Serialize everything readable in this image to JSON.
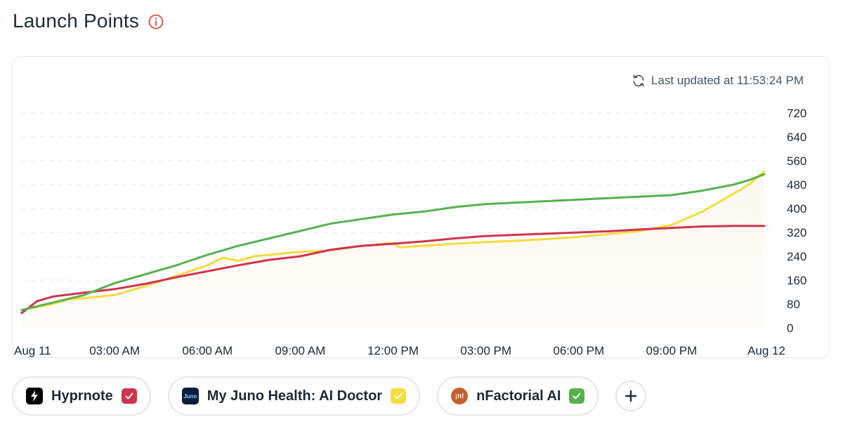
{
  "header": {
    "title": "Launch Points"
  },
  "status": {
    "last_updated": "Last updated at 11:53:24 PM"
  },
  "colors": {
    "red": "#d0334e",
    "yellow": "#f5dc3f",
    "green": "#58b14f",
    "info": "#e25a45"
  },
  "chips": [
    {
      "label": "Hyprnote",
      "logo": "bolt-logo-icon",
      "check_color": "#d0334e"
    },
    {
      "label": "My Juno Health: AI Doctor",
      "logo": "juno-logo-icon",
      "logo_text": "Juno",
      "check_color": "#f5dc3f"
    },
    {
      "label": "nFactorial AI",
      "logo": "nfactorial-logo-icon",
      "logo_text": "¡n!",
      "check_color": "#58b14f"
    }
  ],
  "add_button": {
    "icon": "plus-icon"
  },
  "chart_data": {
    "type": "line",
    "x_ticks": [
      "Aug 11",
      "03:00 AM",
      "06:00 AM",
      "09:00 AM",
      "12:00 PM",
      "03:00 PM",
      "06:00 PM",
      "09:00 PM",
      "Aug 12"
    ],
    "x_range": [
      0,
      24
    ],
    "ylim": [
      0,
      720
    ],
    "y_ticks": [
      0,
      80,
      160,
      240,
      320,
      400,
      480,
      560,
      640,
      720
    ],
    "grid": "horizontal dashed",
    "y_axis_side": "right",
    "series": [
      {
        "name": "Hyprnote",
        "color": "#d0334e",
        "x": [
          0,
          0.5,
          1,
          2,
          3,
          4,
          5,
          6,
          7,
          8,
          9,
          10,
          11,
          12,
          13,
          14,
          15,
          16,
          17,
          18,
          19,
          20,
          21,
          22,
          23,
          24
        ],
        "values": [
          50,
          90,
          105,
          118,
          130,
          148,
          170,
          190,
          210,
          228,
          240,
          262,
          275,
          282,
          290,
          300,
          308,
          312,
          316,
          320,
          324,
          330,
          335,
          340,
          342,
          342
        ]
      },
      {
        "name": "My Juno Health: AI Doctor",
        "color": "#f5dc3f",
        "x": [
          0,
          0.5,
          1,
          1.5,
          2,
          3,
          4,
          5,
          6,
          6.5,
          7,
          7.5,
          8,
          9,
          10,
          11,
          12,
          12.2,
          13,
          14,
          15,
          16,
          17,
          18,
          19,
          20,
          21,
          22,
          23,
          23.5,
          24
        ],
        "values": [
          60,
          70,
          80,
          95,
          100,
          110,
          140,
          175,
          210,
          235,
          225,
          240,
          245,
          255,
          260,
          275,
          285,
          270,
          275,
          282,
          288,
          292,
          298,
          305,
          315,
          325,
          345,
          390,
          450,
          480,
          525
        ]
      },
      {
        "name": "nFactorial AI",
        "color": "#58b14f",
        "x": [
          0,
          1,
          2,
          3,
          4,
          5,
          6,
          7,
          8,
          9,
          10,
          11,
          12,
          13,
          14,
          15,
          16,
          17,
          18,
          19,
          20,
          21,
          22,
          23,
          23.5,
          24
        ],
        "values": [
          60,
          85,
          110,
          150,
          180,
          210,
          245,
          275,
          300,
          325,
          350,
          365,
          380,
          390,
          405,
          415,
          420,
          425,
          430,
          435,
          440,
          445,
          460,
          480,
          495,
          515
        ]
      }
    ]
  }
}
